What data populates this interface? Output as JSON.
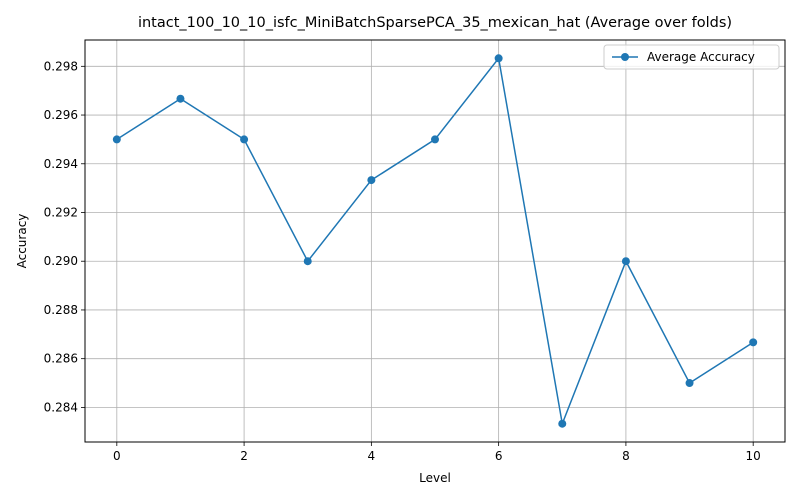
{
  "chart_data": {
    "type": "line",
    "title": "intact_100_10_10_isfc_MiniBatchSparsePCA_35_mexican_hat (Average over folds)",
    "xlabel": "Level",
    "ylabel": "Accuracy",
    "xlim": [
      -0.5,
      10.5
    ],
    "ylim": [
      0.28258,
      0.29908
    ],
    "xticks": [
      0,
      2,
      4,
      6,
      8,
      10
    ],
    "yticks": [
      0.284,
      0.286,
      0.288,
      0.29,
      0.292,
      0.294,
      0.296,
      0.298
    ],
    "ytick_labels": [
      "0.284",
      "0.286",
      "0.288",
      "0.290",
      "0.292",
      "0.294",
      "0.296",
      "0.298"
    ],
    "grid": true,
    "legend_position": "top-right",
    "series": [
      {
        "name": "Average Accuracy",
        "color": "#1f77b4",
        "marker": "circle",
        "x": [
          0,
          1,
          2,
          3,
          4,
          5,
          6,
          7,
          8,
          9,
          10
        ],
        "y": [
          0.295,
          0.29667,
          0.295,
          0.29,
          0.29333,
          0.295,
          0.29833,
          0.28333,
          0.29,
          0.285,
          0.28667
        ]
      }
    ]
  }
}
